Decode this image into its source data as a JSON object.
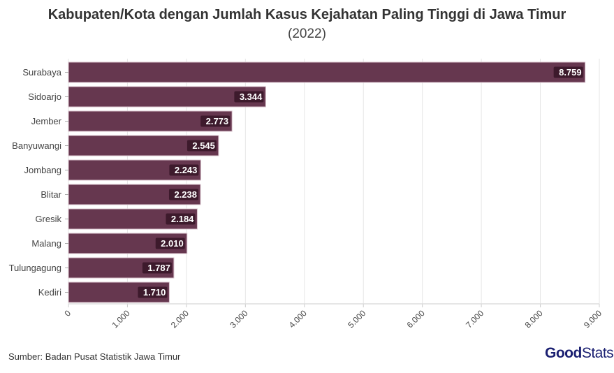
{
  "chart_data": {
    "type": "bar",
    "orientation": "horizontal",
    "title": "Kabupaten/Kota dengan Jumlah Kasus Kejahatan Paling Tinggi di Jawa Timur",
    "subtitle": "(2022)",
    "categories": [
      "Surabaya",
      "Sidoarjo",
      "Jember",
      "Banyuwangi",
      "Jombang",
      "Blitar",
      "Gresik",
      "Malang",
      "Tulungagung",
      "Kediri"
    ],
    "values": [
      8759,
      3344,
      2773,
      2545,
      2243,
      2238,
      2184,
      2010,
      1787,
      1710
    ],
    "value_labels": [
      "8.759",
      "3.344",
      "2.773",
      "2.545",
      "2.243",
      "2.238",
      "2.184",
      "2.010",
      "1.787",
      "1.710"
    ],
    "xlim": [
      0,
      9000
    ],
    "x_ticks": [
      0,
      1000,
      2000,
      3000,
      4000,
      5000,
      6000,
      7000,
      8000,
      9000
    ],
    "x_tick_labels": [
      "0",
      "1.000",
      "2.000",
      "3.000",
      "4.000",
      "5.000",
      "6.000",
      "7.000",
      "8.000",
      "9.000"
    ],
    "grid": true,
    "bar_color": "#66374f"
  },
  "source": "Sumber: Badan Pusat Statistik Jawa Timur",
  "logo": {
    "bold": "Good",
    "light": "Stats"
  }
}
